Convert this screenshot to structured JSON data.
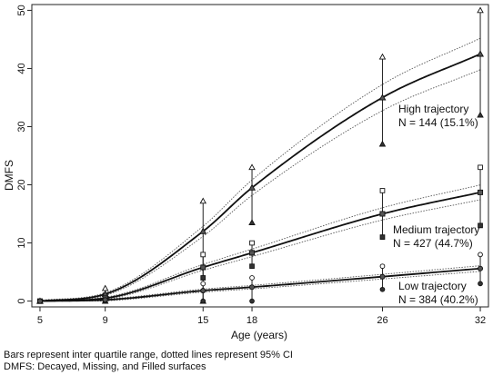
{
  "chart_data": {
    "type": "line",
    "title": "",
    "xlabel": "Age (years)",
    "ylabel": "DMFS",
    "x_ticks": [
      5,
      9,
      15,
      18,
      26,
      32
    ],
    "y_ticks": [
      0,
      10,
      20,
      30,
      40,
      50
    ],
    "xlim": [
      4.5,
      32.5
    ],
    "ylim": [
      -1,
      51
    ],
    "grid": false,
    "legend": "none",
    "series": [
      {
        "name": "High trajectory",
        "label_line1": "High trajectory",
        "label_line2": "N = 144 (15.1%)",
        "marker": "triangle",
        "x": [
          5,
          9,
          15,
          18,
          26,
          32
        ],
        "y": [
          0,
          1.2,
          12,
          19.5,
          35,
          42.5
        ],
        "iqr_low": [
          0,
          0,
          0,
          13.5,
          27,
          32
        ],
        "iqr_high": [
          0,
          2.2,
          17.2,
          23,
          42,
          50
        ]
      },
      {
        "name": "Medium trajectory",
        "label_line1": "Medium trajectory",
        "label_line2": "N = 427 (44.7%)",
        "marker": "square",
        "x": [
          5,
          9,
          15,
          18,
          26,
          32
        ],
        "y": [
          0,
          0.5,
          5.8,
          8.3,
          15,
          18.7
        ],
        "iqr_low": [
          0,
          0,
          4,
          6,
          11,
          13
        ],
        "iqr_high": [
          0,
          1,
          8,
          10,
          19,
          23
        ]
      },
      {
        "name": "Low trajectory",
        "label_line1": "Low trajectory",
        "label_line2": "N = 384 (40.2%)",
        "marker": "circle",
        "x": [
          5,
          9,
          15,
          18,
          26,
          32
        ],
        "y": [
          0,
          0.2,
          1.8,
          2.4,
          4.2,
          5.6
        ],
        "iqr_low": [
          0,
          0,
          0,
          0,
          2,
          3
        ],
        "iqr_high": [
          0,
          0,
          3,
          4,
          6,
          8
        ]
      }
    ]
  },
  "footnotes": {
    "line1": "Bars represent inter quartile range, dotted lines represent 95% CI",
    "line2": "DMFS: Decayed, Missing, and Filled surfaces"
  }
}
